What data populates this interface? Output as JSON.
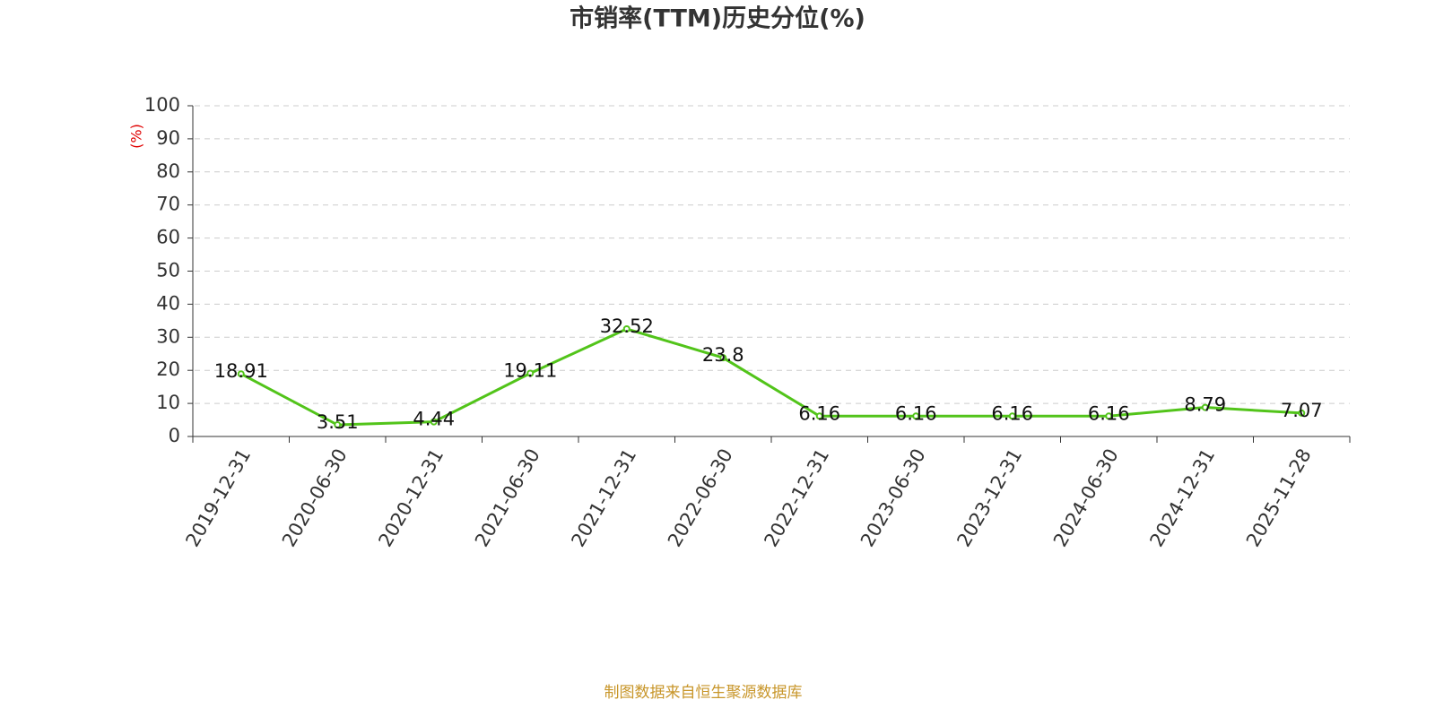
{
  "chart_data": {
    "type": "line",
    "title": "市销率(TTM)历史分位(%)",
    "y_label": "(%)",
    "source": "制图数据来自恒生聚源数据库",
    "categories": [
      "2019-12-31",
      "2020-06-30",
      "2020-12-31",
      "2021-06-30",
      "2021-12-31",
      "2022-06-30",
      "2022-12-31",
      "2023-06-30",
      "2023-12-31",
      "2024-06-30",
      "2024-12-31",
      "2025-11-28"
    ],
    "values": [
      18.91,
      3.51,
      4.44,
      19.11,
      32.52,
      23.8,
      6.16,
      6.16,
      6.16,
      6.16,
      8.79,
      7.07
    ],
    "color": "#52c41a",
    "ylim": [
      0,
      100
    ],
    "yticks": [
      0,
      10,
      20,
      30,
      40,
      50,
      60,
      70,
      80,
      90,
      100
    ],
    "grid": true
  }
}
